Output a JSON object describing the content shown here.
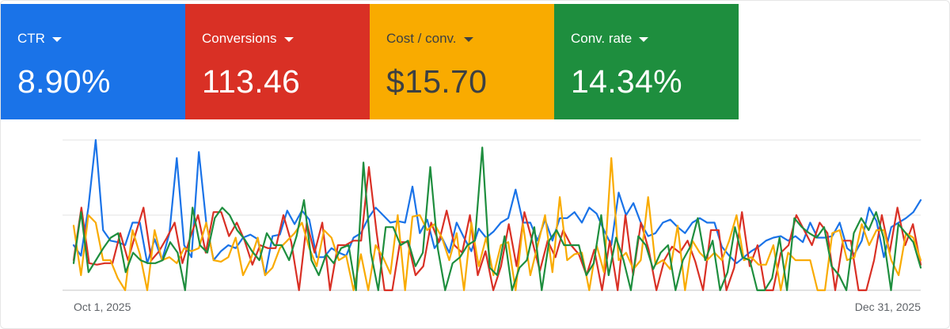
{
  "scorecards": [
    {
      "label": "CTR",
      "value": "8.90%",
      "color": "#1a73e8",
      "text_color": "#ffffff",
      "icon": "caret-down-icon"
    },
    {
      "label": "Conversions",
      "value": "113.46",
      "color": "#d93025",
      "text_color": "#ffffff",
      "icon": "caret-down-icon"
    },
    {
      "label": "Cost / conv.",
      "value": "$15.70",
      "color": "#f9ab00",
      "text_color": "#3c4043",
      "icon": "caret-down-icon"
    },
    {
      "label": "Conv. rate",
      "value": "14.34%",
      "color": "#1e8e3e",
      "text_color": "#ffffff",
      "icon": "caret-down-icon"
    }
  ],
  "chart_data": {
    "type": "line",
    "x_start_label": "Oct 1, 2025",
    "x_end_label": "Dec 31, 2025",
    "grid": true,
    "ylim": [
      0,
      1
    ],
    "series": [
      {
        "color": "#1a73e8",
        "values": [
          0.3,
          0.23,
          0.55,
          1,
          0.4,
          0.33,
          0.32,
          0.3,
          0.45,
          0.45,
          0.18,
          0.34,
          0.2,
          0.38,
          0.88,
          0.3,
          0.22,
          0.92,
          0.45,
          0.2,
          0.26,
          0.3,
          0.28,
          0.35,
          0.37,
          0.34,
          0.1,
          0.36,
          0.37,
          0.53,
          0.44,
          0.53,
          0.47,
          0.22,
          0.22,
          0.28,
          0.25,
          0.23,
          0.35,
          0.38,
          0.48,
          0.55,
          0.5,
          0.45,
          0.46,
          0.45,
          0.69,
          0.38,
          0.47,
          0.28,
          0.35,
          0.25,
          0.45,
          0.35,
          0.26,
          0.41,
          0.35,
          0.39,
          0.45,
          0.48,
          0.67,
          0.45,
          0.45,
          0.33,
          0.47,
          0.33,
          0.48,
          0.48,
          0.52,
          0.45,
          0.55,
          0.51,
          0.4,
          0.3,
          0.65,
          0.5,
          0.58,
          0.45,
          0.36,
          0.38,
          0.45,
          0.47,
          0.42,
          0.38,
          0.45,
          0.48,
          0.45,
          0.45,
          0.29,
          0.23,
          0.18,
          0.22,
          0.26,
          0.29,
          0.33,
          0.35,
          0.36,
          0.33,
          0.36,
          0.32,
          0.45,
          0.35,
          0.35,
          0.36,
          0.45,
          0.28,
          0.24,
          0.33,
          0.55,
          0.46,
          0.22,
          0.42,
          0.45,
          0.48,
          0.52,
          0.6
        ]
      },
      {
        "color": "#d93025",
        "values": [
          0.2,
          0.55,
          0.18,
          0.17,
          0.18,
          0.18,
          0.38,
          0.2,
          0.38,
          0.55,
          0.2,
          0.26,
          0.35,
          0.45,
          0.18,
          0.35,
          0.5,
          0.25,
          0.52,
          0.52,
          0.36,
          0.45,
          0.33,
          0.17,
          0.3,
          0.28,
          0.28,
          0.5,
          0.32,
          0.0,
          0.45,
          0.25,
          0.45,
          0.0,
          0.3,
          0.3,
          0.33,
          0.33,
          0.82,
          0.38,
          0.0,
          0.0,
          0.32,
          0.32,
          0.1,
          0.16,
          0.45,
          0.32,
          0.53,
          0.3,
          0.25,
          0.5,
          0.1,
          0.26,
          0.0,
          0.16,
          0.44,
          0.16,
          0.52,
          0.33,
          0.13,
          0.33,
          0.22,
          0.4,
          0.3,
          0.24,
          0.1,
          0.27,
          0.0,
          0.33,
          0.0,
          0.5,
          0.1,
          0.45,
          0.27,
          0.0,
          0.2,
          0.29,
          0.25,
          0.33,
          0.19,
          0.0,
          0.4,
          0.4,
          0.0,
          0.15,
          0.52,
          0.16,
          0.3,
          0.0,
          0.0,
          0.25,
          0.3,
          0.5,
          0.4,
          0.3,
          0.45,
          0.38,
          0.0,
          0.33,
          0.33,
          0.0,
          0.0,
          0.2,
          0.5,
          0.25,
          0.55,
          0.3,
          0.44,
          0.17
        ]
      },
      {
        "color": "#f9ab00",
        "values": [
          0.43,
          0.1,
          0.5,
          0.45,
          0.2,
          0.2,
          0.08,
          0.0,
          0.4,
          0.24,
          0.0,
          0.4,
          0.2,
          0.22,
          0.18,
          0.28,
          0.26,
          0.28,
          0.45,
          0.2,
          0.19,
          0.22,
          0.35,
          0.1,
          0.2,
          0.35,
          0.1,
          0.15,
          0.28,
          0.33,
          0.38,
          0.45,
          0.28,
          0.16,
          0.4,
          0.35,
          0.2,
          0.23,
          0.0,
          0.24,
          0.0,
          0.3,
          0.22,
          0.11,
          0.5,
          0.0,
          0.49,
          0.5,
          0.4,
          0.44,
          0.35,
          0.2,
          0.38,
          0.0,
          0.45,
          0.16,
          0.35,
          0.1,
          0.3,
          0.32,
          0.0,
          0.44,
          0.1,
          0.3,
          0.5,
          0.12,
          0.62,
          0.2,
          0.24,
          0.25,
          0.0,
          0.3,
          0.12,
          0.88,
          0.2,
          0.25,
          0.14,
          0.2,
          0.62,
          0.17,
          0.2,
          0.14,
          0.43,
          0.0,
          0.33,
          0.25,
          0.2,
          0.25,
          0.2,
          0.33,
          0.5,
          0.2,
          0.22,
          0.17,
          0.17,
          0.3,
          0.0,
          0.25,
          0.2,
          0.2,
          0.2,
          0.0,
          0.0,
          0.38,
          0.4,
          0.2,
          0.22,
          0.44,
          0.3,
          0.4,
          0.4,
          0.2,
          0.1,
          0.38,
          0.35,
          0.2
        ]
      },
      {
        "color": "#1e8e3e",
        "values": [
          0.18,
          0.52,
          0.12,
          0.2,
          0.28,
          0.35,
          0.38,
          0.12,
          0.25,
          0.2,
          0.18,
          0.18,
          0.2,
          0.32,
          0.25,
          0.0,
          0.55,
          0.3,
          0.25,
          0.48,
          0.55,
          0.5,
          0.4,
          0.34,
          0.26,
          0.2,
          0.38,
          0.3,
          0.3,
          0.2,
          0.36,
          0.6,
          0.2,
          0.1,
          0.24,
          0.18,
          0.28,
          0.3,
          0.0,
          0.85,
          0.25,
          0.0,
          0.42,
          0.42,
          0.3,
          0.33,
          0.16,
          0.25,
          0.82,
          0.28,
          0.0,
          0.18,
          0.22,
          0.3,
          0.33,
          0.95,
          0.15,
          0.1,
          0.36,
          0.0,
          0.15,
          0.2,
          0.42,
          0.0,
          0.33,
          0.4,
          0.3,
          0.3,
          0.3,
          0.1,
          0.18,
          0.5,
          0.1,
          0.35,
          0.2,
          0.0,
          0.36,
          0.3,
          0.14,
          0.25,
          0.3,
          0.0,
          0.2,
          0.29,
          0.48,
          0.2,
          0.33,
          0.0,
          0.12,
          0.42,
          0.22,
          0.2,
          0.0,
          0.0,
          0.08,
          0.35,
          0.0,
          0.48,
          0.42,
          0.38,
          0.35,
          0.42,
          0.16,
          0.1,
          0.0,
          0.38,
          0.48,
          0.4,
          0.52,
          0.35,
          0.0,
          0.44,
          0.38,
          0.32,
          0.15
        ]
      }
    ]
  }
}
